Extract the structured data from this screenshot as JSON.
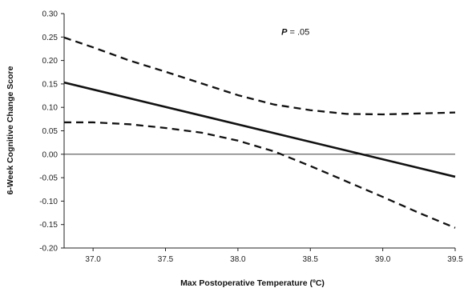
{
  "chart_data": {
    "type": "line",
    "xlabel": "Max Postoperative Temperature (ºC)",
    "ylabel": "6-Week Cognitive Change Score",
    "xlim": [
      36.8,
      39.5
    ],
    "ylim": [
      -0.2,
      0.3
    ],
    "x_ticks": [
      "37.0",
      "37.5",
      "38.0",
      "38.5",
      "39.0",
      "39.5"
    ],
    "y_ticks": [
      "-0.20",
      "-0.15",
      "-0.10",
      "-0.05",
      "0.00",
      "0.05",
      "0.10",
      "0.15",
      "0.20",
      "0.25",
      "0.30"
    ],
    "reference_line_y": 0,
    "grid": false,
    "annotation": {
      "italic": "P",
      "text": " = .05",
      "x": 38.3,
      "y": 0.255
    },
    "series": [
      {
        "style": "solid",
        "color": "#111111",
        "x": [
          36.8,
          39.5
        ],
        "y": [
          0.153,
          -0.048
        ]
      },
      {
        "style": "dashed",
        "color": "#111111",
        "x": [
          36.8,
          37.0,
          37.25,
          37.5,
          37.75,
          38.0,
          38.25,
          38.5,
          38.75,
          39.0,
          39.25,
          39.5
        ],
        "y": [
          0.249,
          0.228,
          0.2,
          0.176,
          0.151,
          0.126,
          0.106,
          0.094,
          0.086,
          0.085,
          0.087,
          0.089
        ]
      },
      {
        "style": "dashed",
        "color": "#111111",
        "x": [
          36.8,
          37.0,
          37.25,
          37.5,
          37.75,
          38.0,
          38.25,
          38.5,
          38.75,
          39.0,
          39.25,
          39.5
        ],
        "y": [
          0.068,
          0.068,
          0.064,
          0.056,
          0.046,
          0.029,
          0.006,
          -0.025,
          -0.058,
          -0.091,
          -0.125,
          -0.157
        ]
      }
    ]
  }
}
